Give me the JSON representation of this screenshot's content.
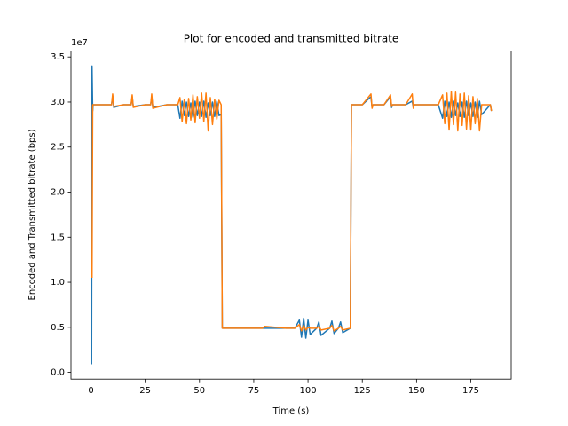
{
  "chart_data": {
    "type": "line",
    "title": "Plot for encoded and transmitted bitrate",
    "x_label": "Time (s)",
    "y_label": "Encoded and Transmitted bitrate (bps)",
    "y_offset_label": "1e7",
    "xlim": [
      -9.2,
      193.6
    ],
    "ylim": [
      -750000,
      35650000
    ],
    "xticks": [
      0,
      25,
      50,
      75,
      100,
      125,
      150,
      175
    ],
    "yticks": [
      {
        "value": 0,
        "label": "0.0"
      },
      {
        "value": 5000000,
        "label": "0.5"
      },
      {
        "value": 10000000,
        "label": "1.0"
      },
      {
        "value": 15000000,
        "label": "1.5"
      },
      {
        "value": 20000000,
        "label": "2.0"
      },
      {
        "value": 25000000,
        "label": "2.5"
      },
      {
        "value": 30000000,
        "label": "3.0"
      },
      {
        "value": 35000000,
        "label": "3.5"
      }
    ],
    "grid": false,
    "x": [
      0.3,
      0.5,
      0.8,
      1,
      1.5,
      5,
      9.5,
      10,
      10.5,
      15,
      18.5,
      19,
      19.5,
      25,
      27.5,
      28,
      28.5,
      35,
      40,
      41,
      42,
      43,
      44,
      45,
      46,
      47,
      48,
      49,
      50,
      51,
      52,
      53,
      54,
      55,
      56,
      57,
      58,
      59,
      60,
      60.5,
      65,
      79,
      80,
      90,
      94,
      96,
      97,
      98,
      99,
      100,
      101,
      104,
      105,
      106,
      110,
      111,
      112,
      114,
      115,
      116,
      119.5,
      120,
      120.5,
      125,
      129,
      129.5,
      130,
      135,
      138,
      138.5,
      139,
      145,
      148,
      148.5,
      149,
      155,
      160,
      162,
      163,
      164,
      165,
      166,
      167,
      168,
      169,
      170,
      171,
      172,
      173,
      174,
      175,
      176,
      177,
      178,
      179,
      180,
      184,
      184.5
    ],
    "series": [
      {
        "color": "#1f77b4",
        "values": [
          900000,
          34000000,
          29000000,
          29700000,
          29700000,
          29700000,
          29700000,
          30700000,
          29400000,
          29700000,
          29700000,
          30600000,
          29500000,
          29700000,
          29700000,
          30600000,
          29400000,
          29700000,
          29700000,
          28200000,
          30100000,
          28500000,
          30000000,
          28400000,
          29900000,
          28300000,
          30100000,
          28500000,
          30000000,
          28400000,
          30100000,
          28300000,
          29900000,
          28500000,
          30000000,
          28400000,
          30100000,
          28500000,
          28600000,
          4900000,
          4900000,
          4900000,
          4900000,
          4900000,
          4900000,
          5800000,
          3900000,
          6000000,
          3800000,
          5800000,
          4200000,
          4900000,
          5600000,
          4100000,
          4900000,
          5700000,
          4300000,
          4900000,
          5600000,
          4400000,
          4900000,
          29700000,
          29700000,
          29700000,
          30600000,
          29400000,
          29700000,
          29700000,
          30600000,
          29400000,
          29700000,
          29700000,
          30100000,
          29400000,
          29700000,
          29700000,
          29700000,
          28200000,
          30100000,
          28400000,
          30000000,
          28300000,
          30100000,
          28500000,
          29900000,
          28400000,
          30000000,
          28300000,
          30100000,
          28500000,
          29900000,
          28400000,
          30000000,
          28300000,
          30100000,
          28600000,
          29700000,
          29000000
        ]
      },
      {
        "color": "#ff7f0e",
        "values": [
          null,
          10500000,
          29700000,
          29700000,
          29700000,
          29700000,
          29700000,
          30900000,
          29500000,
          29700000,
          29700000,
          30800000,
          29400000,
          29700000,
          29700000,
          30900000,
          29300000,
          29700000,
          29700000,
          30500000,
          27800000,
          30300000,
          27600000,
          30400000,
          28000000,
          30800000,
          27700000,
          30600000,
          28200000,
          31000000,
          27800000,
          31000000,
          26800000,
          30500000,
          27500000,
          30300000,
          28100000,
          30200000,
          29700000,
          4900000,
          4900000,
          4900000,
          5100000,
          4900000,
          4900000,
          5300000,
          4600000,
          5200000,
          4700000,
          5000000,
          4900000,
          4900000,
          5100000,
          4700000,
          4900000,
          5200000,
          4600000,
          4900000,
          5100000,
          4700000,
          4900000,
          29700000,
          29700000,
          29700000,
          30900000,
          29300000,
          29700000,
          29700000,
          30800000,
          29500000,
          29700000,
          29700000,
          30900000,
          29300000,
          29700000,
          29700000,
          29700000,
          30800000,
          27600000,
          31000000,
          26900000,
          31200000,
          27500000,
          31100000,
          26800000,
          30900000,
          27400000,
          31000000,
          27000000,
          30700000,
          26900000,
          30600000,
          27600000,
          30400000,
          26800000,
          29700000,
          29700000,
          29000000
        ]
      }
    ]
  }
}
